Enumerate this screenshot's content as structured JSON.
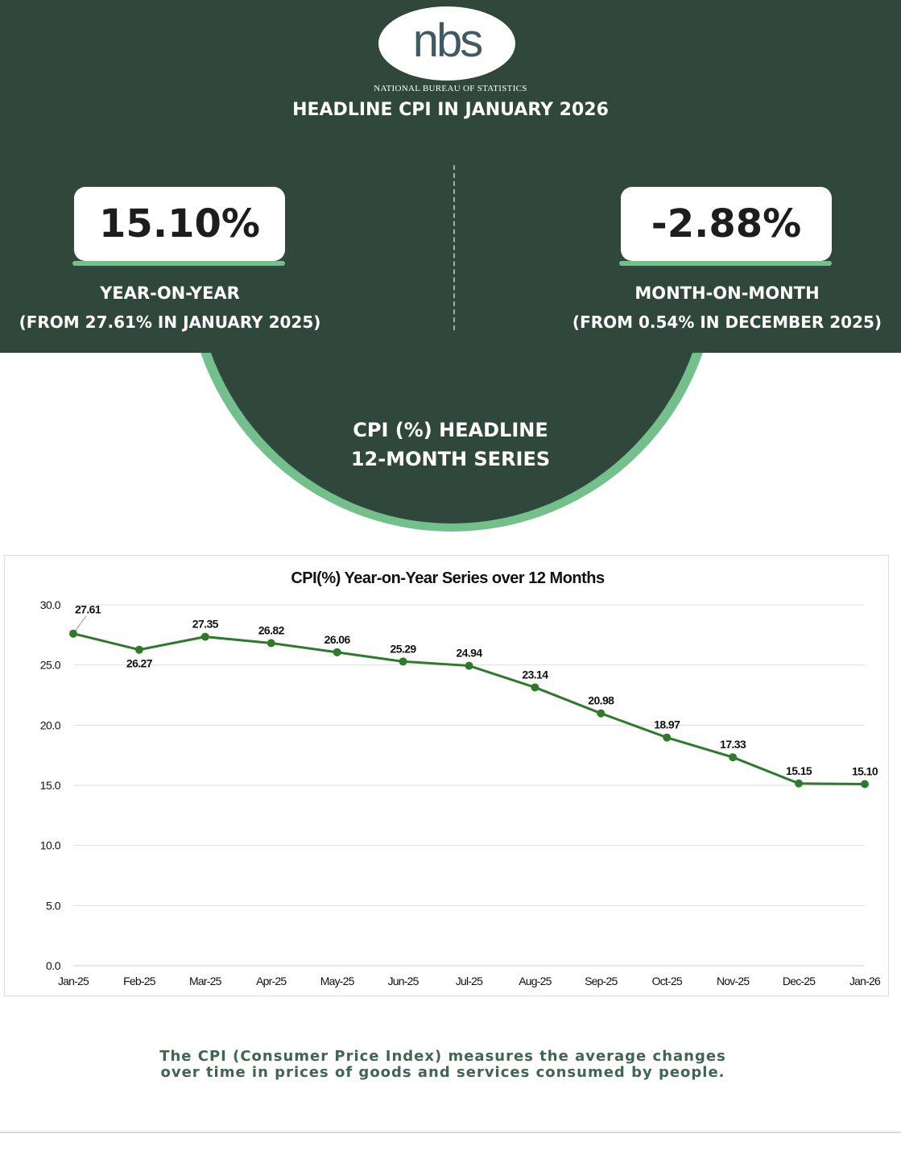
{
  "logo": {
    "text": "nbs",
    "caption": "NATIONAL BUREAU OF STATISTICS"
  },
  "title": "HEADLINE CPI IN JANUARY 2026",
  "yoy": {
    "value": "15.10%",
    "label": "YEAR-ON-YEAR",
    "sub": "(FROM 27.61% IN JANUARY 2025)"
  },
  "mom": {
    "value": "-2.88%",
    "label": "MONTH-ON-MONTH",
    "sub": "(FROM 0.54% IN DECEMBER 2025)"
  },
  "series_title": {
    "line1": "CPI (%)  HEADLINE",
    "line2": "12-MONTH SERIES"
  },
  "colors": {
    "dark_green": "#30483b",
    "accent_green": "#74c08c",
    "line_green": "#2e7a2a",
    "footnote_green": "#3e6652"
  },
  "chart_data": {
    "type": "line",
    "title": "CPI(%) Year-on-Year Series over 12 Months",
    "xlabel": "",
    "ylabel": "",
    "ylim": [
      0,
      30
    ],
    "yticks": [
      "0.0",
      "5.0",
      "10.0",
      "15.0",
      "20.0",
      "25.0",
      "30.0"
    ],
    "x_tick_labels": [
      "Jan-25",
      "Feb-25",
      "Mar-25",
      "Apr-25",
      "May-25",
      "Jun-25",
      "Jul-25",
      "Aug-25",
      "Sep-25",
      "Oct-25",
      "Nov-25",
      "Dec-25",
      "Jan-26"
    ],
    "values": [
      27.61,
      26.27,
      27.35,
      26.82,
      26.06,
      25.29,
      24.94,
      23.14,
      20.98,
      18.97,
      17.33,
      15.15,
      15.1
    ],
    "labels": [
      "27.61",
      "26.27",
      "27.35",
      "26.82",
      "26.06",
      "25.29",
      "24.94",
      "23.14",
      "20.98",
      "18.97",
      "17.33",
      "15.15",
      "15.10"
    ],
    "grid": true,
    "legend": "none"
  },
  "footnote": {
    "line1": "The CPI (Consumer Price Index) measures the average changes",
    "line2": "over time in prices of goods and services consumed by people."
  }
}
